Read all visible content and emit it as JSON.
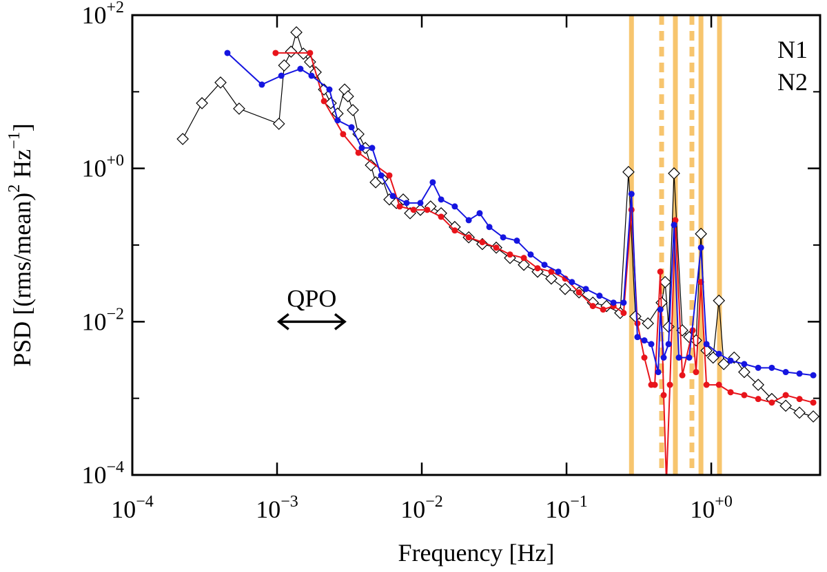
{
  "chart_data": {
    "type": "line",
    "xlabel": "Frequency [Hz]",
    "ylabel": [
      {
        "text": "PSD [(rms/mean)"
      },
      {
        "sup": "2"
      },
      {
        "text": " Hz"
      },
      {
        "sup": "−1"
      },
      {
        "text": "]"
      }
    ],
    "xlim": [
      0.0001,
      5.65
    ],
    "ylim": [
      0.0001,
      100
    ],
    "log_x": true,
    "log_y": true,
    "xticks": [
      {
        "value": 0.0001,
        "label": "10",
        "sup": "−4"
      },
      {
        "value": 0.001,
        "label": "10",
        "sup": "−3"
      },
      {
        "value": 0.01,
        "label": "10",
        "sup": "−2"
      },
      {
        "value": 0.1,
        "label": "10",
        "sup": "−1"
      },
      {
        "value": 1,
        "label": "10",
        "sup": "+0"
      }
    ],
    "yticks": [
      {
        "value": 0.0001,
        "label": "10",
        "sup": "−4"
      },
      {
        "value": 0.01,
        "label": "10",
        "sup": "−2"
      },
      {
        "value": 1,
        "label": "10",
        "sup": "+0"
      },
      {
        "value": 100,
        "label": "10",
        "sup": "+2"
      }
    ],
    "yticks_minor": [
      0.001,
      0.1,
      10
    ],
    "legend": "upper right",
    "series": [
      {
        "color": "#000000",
        "marker": "diamond",
        "x": [
          0.000223,
          0.000303,
          0.000407,
          0.000547,
          0.00103,
          0.00112,
          0.00125,
          0.00136,
          0.00152,
          0.00169,
          0.00185,
          0.00211,
          0.00235,
          0.00262,
          0.00293,
          0.00309,
          0.00334,
          0.00365,
          0.00407,
          0.00445,
          0.0048,
          0.00535,
          0.00597,
          0.00667,
          0.00744,
          0.0083,
          0.00978,
          0.0115,
          0.0136,
          0.0169,
          0.0211,
          0.0262,
          0.0327,
          0.0407,
          0.0507,
          0.0631,
          0.0785,
          0.0978,
          0.122,
          0.152,
          0.189,
          0.235,
          0.268,
          0.299,
          0.365,
          0.454,
          0.48,
          0.507,
          0.553,
          0.631,
          0.704,
          0.785,
          0.849,
          0.927,
          1.03,
          1.13,
          1.22,
          1.44,
          1.69,
          2.11,
          2.62,
          3.27,
          4.07,
          5.07
        ],
        "values": [
          2.42,
          7.1,
          13.2,
          6.02,
          3.82,
          22.1,
          33.4,
          59.7,
          31.4,
          24.5,
          18.0,
          10.7,
          7.1,
          5.2,
          10.7,
          8.72,
          5.77,
          2.8,
          1.85,
          1.1,
          0.659,
          0.731,
          0.393,
          0.354,
          0.393,
          0.26,
          0.288,
          0.319,
          0.26,
          0.172,
          0.126,
          0.103,
          0.0925,
          0.0678,
          0.0552,
          0.0449,
          0.0365,
          0.0267,
          0.0241,
          0.0177,
          0.016,
          0.013,
          0.898,
          0.0117,
          0.0095,
          0.0177,
          0.0329,
          0.0086,
          0.861,
          0.0077,
          0.0063,
          0.0057,
          0.14,
          0.0042,
          0.0034,
          0.0188,
          0.0028,
          0.0034,
          0.0022,
          0.0015,
          0.00098,
          0.0008,
          0.00065,
          0.00058
        ]
      },
      {
        "name": "N1",
        "color": "#e8141b",
        "marker": "circle",
        "x": [
          0.000977,
          0.00169,
          0.00211,
          0.00286,
          0.00365,
          0.00597,
          0.00704,
          0.00877,
          0.0109,
          0.0136,
          0.0169,
          0.0211,
          0.0262,
          0.0327,
          0.0407,
          0.0507,
          0.0631,
          0.0785,
          0.0978,
          0.122,
          0.152,
          0.179,
          0.211,
          0.248,
          0.281,
          0.309,
          0.345,
          0.385,
          0.407,
          0.445,
          0.469,
          0.49,
          0.518,
          0.565,
          0.631,
          0.744,
          0.785,
          0.849,
          0.927,
          1.13,
          1.36,
          1.69,
          2.11,
          2.62,
          3.27,
          4.07,
          5.07
        ],
        "values": [
          32.1,
          32.1,
          7.55,
          2.8,
          1.6,
          0.81,
          0.319,
          0.288,
          0.288,
          0.234,
          0.155,
          0.126,
          0.109,
          0.0925,
          0.0752,
          0.0678,
          0.0498,
          0.0449,
          0.0365,
          0.0241,
          0.016,
          0.0144,
          0.016,
          0.013,
          0.288,
          0.0095,
          0.0034,
          0.0015,
          0.0015,
          0.0449,
          0.0011,
          8e-05,
          0.0015,
          0.211,
          0.002,
          0.0077,
          0.0022,
          0.0329,
          0.0015,
          0.0015,
          0.0012,
          0.0011,
          0.00098,
          0.00088,
          0.0011,
          0.00098,
          0.00088
        ]
      },
      {
        "name": "N2",
        "color": "#1515e0",
        "marker": "circle",
        "x": [
          0.000454,
          0.000785,
          0.00107,
          0.00145,
          0.00173,
          0.0023,
          0.00262,
          0.00327,
          0.00385,
          0.00454,
          0.00524,
          0.00631,
          0.00785,
          0.00978,
          0.0119,
          0.0136,
          0.0169,
          0.0211,
          0.0251,
          0.0293,
          0.0365,
          0.0454,
          0.0565,
          0.0704,
          0.0877,
          0.109,
          0.136,
          0.169,
          0.211,
          0.248,
          0.281,
          0.309,
          0.345,
          0.385,
          0.43,
          0.445,
          0.469,
          0.507,
          0.553,
          0.597,
          0.704,
          0.849,
          0.927,
          1.13,
          1.36,
          1.69,
          2.11,
          2.62,
          3.27,
          4.07,
          5.07
        ],
        "values": [
          32.1,
          12.4,
          16.2,
          19.9,
          16.2,
          10.7,
          4.24,
          3.44,
          1.85,
          1.85,
          0.81,
          0.436,
          0.354,
          0.354,
          0.659,
          0.393,
          0.319,
          0.211,
          0.26,
          0.172,
          0.126,
          0.114,
          0.0752,
          0.0552,
          0.0449,
          0.0329,
          0.0267,
          0.0218,
          0.0177,
          0.0177,
          0.464,
          0.0063,
          0.0057,
          0.0051,
          0.0022,
          0.0144,
          0.0034,
          0.0051,
          0.183,
          0.0034,
          0.0034,
          0.0925,
          0.0051,
          0.0038,
          0.0031,
          0.0028,
          0.0025,
          0.0025,
          0.0022,
          0.0021,
          0.002
        ]
      }
    ],
    "vlines": {
      "color": "#f7c56e",
      "solid": [
        0.281,
        0.565,
        0.849,
        1.14
      ],
      "dashed": [
        0.454,
        0.735
      ]
    },
    "annotations": [
      {
        "text": "QPO",
        "x": [
          0.00103,
          0.00293
        ],
        "y": 0.01
      }
    ]
  }
}
